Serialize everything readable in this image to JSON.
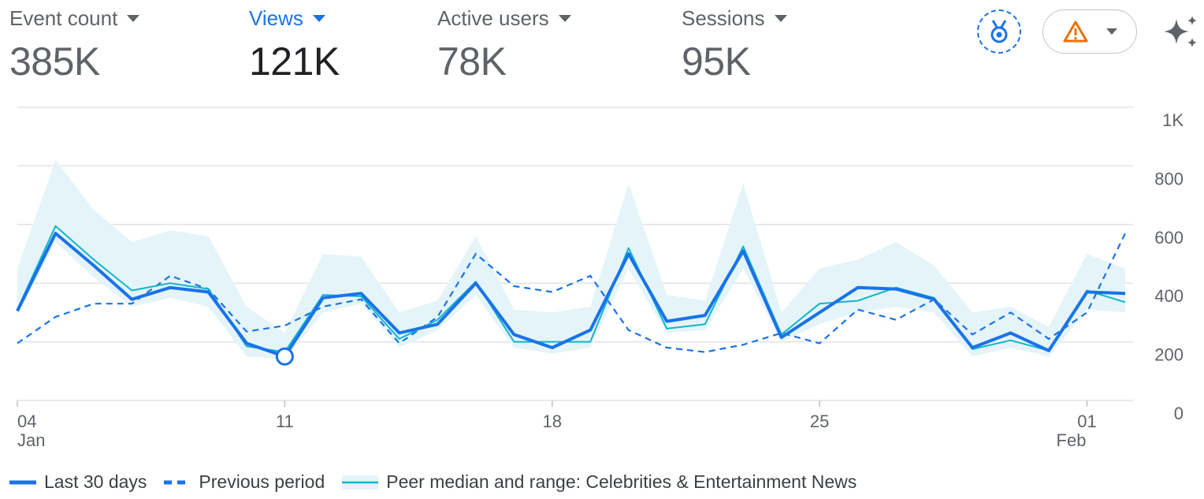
{
  "metrics": [
    {
      "label": "Event count",
      "value": "385K",
      "active": false
    },
    {
      "label": "Views",
      "value": "121K",
      "active": true
    },
    {
      "label": "Active users",
      "value": "78K",
      "active": false
    },
    {
      "label": "Sessions",
      "value": "95K",
      "active": false
    }
  ],
  "toolbar": {
    "medal_icon": "medal-icon",
    "warning_icon": "warning-icon",
    "sparkle_icon": "sparkle-icon",
    "accent_color": "#1a73e8",
    "warning_color": "#e8710a"
  },
  "legend": {
    "current": "Last 30 days",
    "previous": "Previous period",
    "peer": "Peer median and range: Celebrities & Entertainment News"
  },
  "chart_data": {
    "type": "line",
    "ylim": [
      0,
      1000
    ],
    "yticks": [
      {
        "value": 0,
        "label": "0"
      },
      {
        "value": 200,
        "label": "200"
      },
      {
        "value": 400,
        "label": "400"
      },
      {
        "value": 600,
        "label": "600"
      },
      {
        "value": 800,
        "label": "800"
      },
      {
        "value": 1000,
        "label": "1K"
      }
    ],
    "x_dates": [
      "2025-01-04",
      "2025-01-05",
      "2025-01-06",
      "2025-01-07",
      "2025-01-08",
      "2025-01-09",
      "2025-01-10",
      "2025-01-11",
      "2025-01-12",
      "2025-01-13",
      "2025-01-14",
      "2025-01-15",
      "2025-01-16",
      "2025-01-17",
      "2025-01-18",
      "2025-01-19",
      "2025-01-20",
      "2025-01-21",
      "2025-01-22",
      "2025-01-23",
      "2025-01-24",
      "2025-01-25",
      "2025-01-26",
      "2025-01-27",
      "2025-01-28",
      "2025-01-29",
      "2025-01-30",
      "2025-01-31",
      "2025-02-01",
      "2025-02-02"
    ],
    "xticks": [
      {
        "date": "2025-01-04",
        "label": "04",
        "sublabel": "Jan"
      },
      {
        "date": "2025-01-11",
        "label": "11",
        "sublabel": ""
      },
      {
        "date": "2025-01-18",
        "label": "18",
        "sublabel": ""
      },
      {
        "date": "2025-01-25",
        "label": "25",
        "sublabel": ""
      },
      {
        "date": "2025-02-01",
        "label": "01",
        "sublabel": "Feb"
      }
    ],
    "highlight": {
      "date": "2025-01-11",
      "value": 150
    },
    "series": [
      {
        "name": "Last 30 days",
        "style": "solid",
        "color": "#1a73e8",
        "values": [
          305,
          570,
          460,
          345,
          385,
          370,
          195,
          150,
          350,
          365,
          230,
          260,
          400,
          225,
          180,
          240,
          500,
          270,
          290,
          510,
          215,
          300,
          385,
          380,
          345,
          180,
          230,
          170,
          370,
          365
        ]
      },
      {
        "name": "Previous period",
        "style": "dashed",
        "color": "#1a73e8",
        "values": [
          195,
          285,
          330,
          330,
          425,
          380,
          235,
          255,
          320,
          345,
          195,
          285,
          500,
          390,
          370,
          425,
          240,
          180,
          165,
          190,
          230,
          195,
          310,
          275,
          345,
          225,
          300,
          210,
          300,
          570
        ]
      },
      {
        "name": "Peer median",
        "style": "solid",
        "color": "#12b5cb",
        "values": [
          310,
          595,
          480,
          375,
          400,
          380,
          185,
          165,
          360,
          355,
          210,
          275,
          405,
          200,
          200,
          200,
          520,
          245,
          260,
          525,
          225,
          330,
          340,
          385,
          350,
          175,
          205,
          170,
          375,
          335
        ]
      },
      {
        "name": "Peer range",
        "type": "band",
        "color": "#e4f4f8",
        "lower": [
          290,
          540,
          420,
          320,
          350,
          320,
          150,
          140,
          300,
          330,
          180,
          240,
          360,
          180,
          160,
          180,
          450,
          230,
          240,
          450,
          200,
          260,
          300,
          320,
          300,
          150,
          180,
          150,
          310,
          300
        ],
        "upper": [
          450,
          820,
          650,
          540,
          580,
          560,
          320,
          230,
          500,
          490,
          300,
          340,
          560,
          310,
          300,
          320,
          740,
          360,
          340,
          740,
          300,
          450,
          480,
          540,
          460,
          300,
          320,
          250,
          500,
          450
        ]
      }
    ]
  }
}
